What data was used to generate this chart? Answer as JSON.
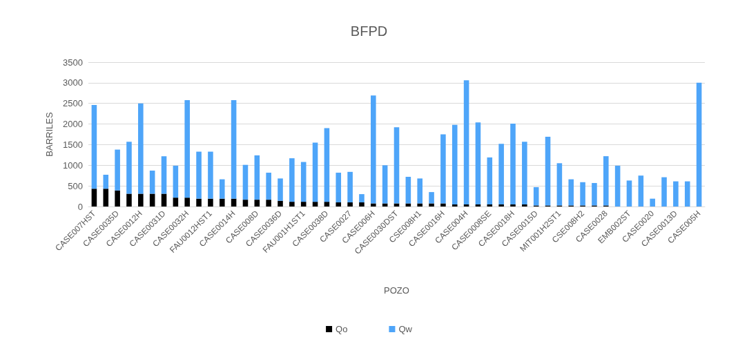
{
  "chart_data": {
    "type": "bar",
    "title": "BFPD",
    "xlabel": "POZO",
    "ylabel": "BARRILES",
    "stacked": true,
    "legend": "bottom",
    "grid": "y",
    "categories": [
      "CASE007HST",
      null,
      "CASE0035D",
      null,
      "CASE0012H",
      null,
      "CASE0031D",
      null,
      "CASE0032H",
      null,
      "FAU0012HST1",
      null,
      "CASE0014H",
      null,
      "CASE008D",
      null,
      "CASE0036D",
      null,
      "FAU001H1ST1",
      null,
      "CASE0038D",
      null,
      "CASE0027",
      null,
      "CASE006H",
      null,
      "CASE0030DST",
      null,
      "CSE008H1",
      null,
      "CASE0016H",
      null,
      "CASE004H",
      null,
      "CASE0008SE",
      null,
      "CASE0018H",
      null,
      "CASE0015D",
      null,
      "MIT001H2ST1",
      null,
      "CSE008H2",
      null,
      "CASE0028",
      null,
      "EMB002ST",
      null,
      "CASE0020",
      null,
      "CASE0013D",
      null,
      "CASE005H"
    ],
    "series": [
      {
        "name": "Qo",
        "color": "#000000",
        "values": [
          430,
          430,
          390,
          310,
          310,
          310,
          310,
          215,
          215,
          190,
          190,
          190,
          190,
          165,
          165,
          165,
          140,
          115,
          115,
          115,
          115,
          100,
          100,
          100,
          75,
          75,
          75,
          75,
          75,
          75,
          75,
          50,
          50,
          50,
          50,
          50,
          50,
          50,
          25,
          25,
          25,
          25,
          25,
          25,
          25,
          0,
          0,
          0,
          0,
          0,
          0,
          0,
          0
        ]
      },
      {
        "name": "Qw",
        "color": "#4ea5f9",
        "values": [
          2030,
          340,
          990,
          1260,
          2190,
          560,
          910,
          775,
          2365,
          1140,
          1140,
          470,
          2390,
          845,
          1075,
          655,
          540,
          1055,
          965,
          1435,
          1785,
          720,
          740,
          200,
          2615,
          925,
          1845,
          645,
          605,
          275,
          1675,
          1930,
          3010,
          1990,
          1140,
          1470,
          1960,
          1520,
          445,
          1665,
          1025,
          635,
          565,
          545,
          1195,
          990,
          630,
          750,
          190,
          710,
          610,
          610,
          3000
        ]
      }
    ],
    "ylim": [
      0,
      3500
    ],
    "yticks": [
      0,
      500,
      1000,
      1500,
      2000,
      2500,
      3000,
      3500
    ]
  }
}
